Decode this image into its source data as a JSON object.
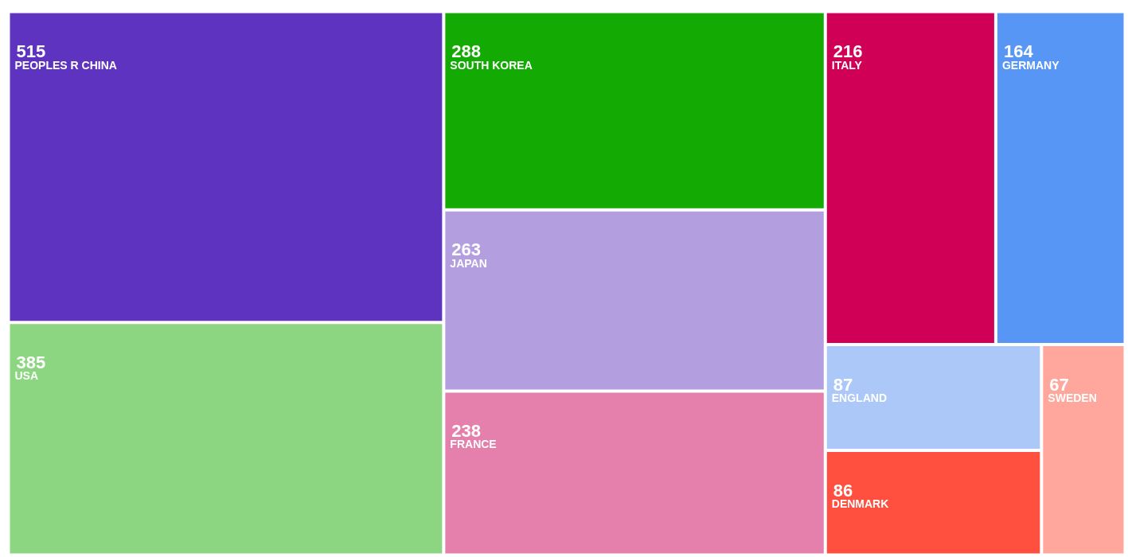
{
  "chart_data": {
    "type": "other",
    "categories": [
      "PEOPLES R CHINA",
      "USA",
      "SOUTH KOREA",
      "JAPAN",
      "FRANCE",
      "ITALY",
      "GERMANY",
      "ENGLAND",
      "DENMARK",
      "SWEDEN"
    ],
    "values": [
      515,
      385,
      288,
      263,
      238,
      216,
      164,
      87,
      86,
      67
    ],
    "colors": [
      "#5e33bf",
      "#8cd682",
      "#13ab03",
      "#b39fe0",
      "#e57fab",
      "#d00057",
      "#5896f5",
      "#abc8f8",
      "#ff4f3f",
      "#ffa79d"
    ],
    "data_labels": true
  }
}
